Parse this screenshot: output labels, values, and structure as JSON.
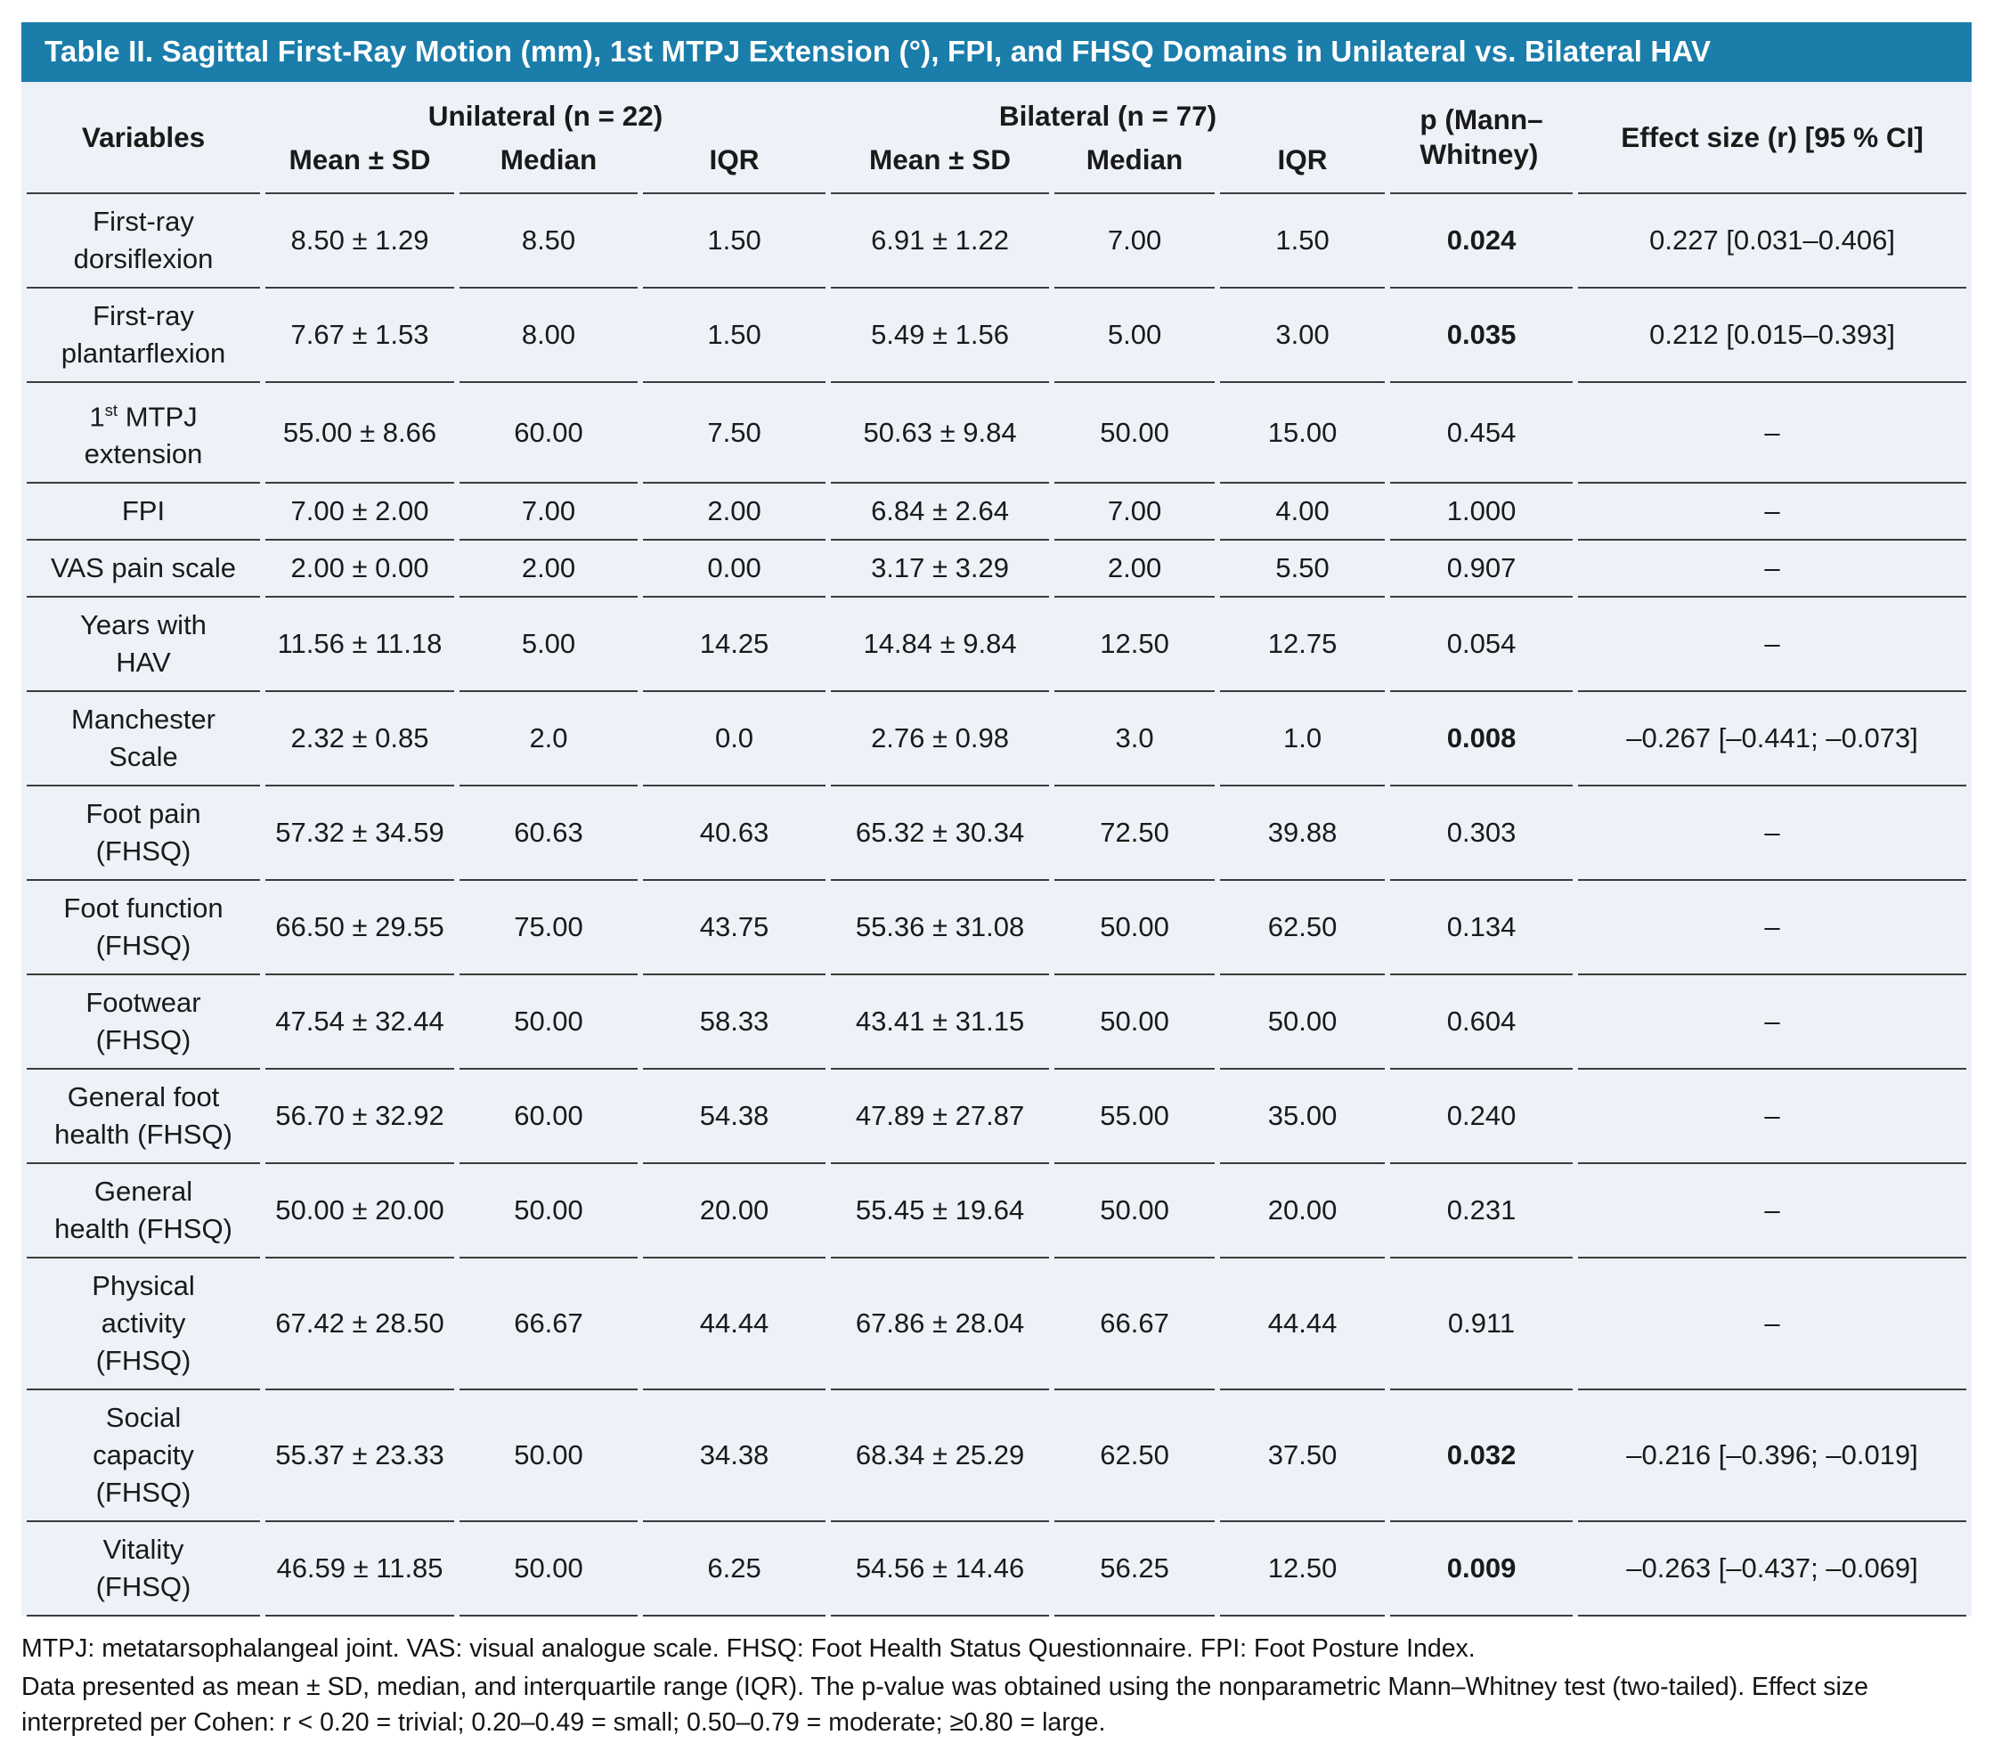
{
  "table": {
    "title": "Table II. Sagittal First-Ray Motion (mm), 1st MTPJ Extension (°), FPI, and FHSQ Domains in Unilateral vs. Bilateral HAV",
    "header": {
      "variables": "Variables",
      "group_unilateral": "Unilateral (n = 22)",
      "group_bilateral": "Bilateral (n = 77)",
      "sub": [
        "Mean ± SD",
        "Median",
        "IQR",
        "Mean ± SD",
        "Median",
        "IQR"
      ],
      "p": "p (Mann–\nWhitney)",
      "effect": "Effect size (r) [95 % CI]"
    },
    "rows": [
      {
        "label": "First-ray\ndorsiflexion",
        "u_mean": "8.50 ± 1.29",
        "u_median": "8.50",
        "u_iqr": "1.50",
        "b_mean": "6.91 ± 1.22",
        "b_median": "7.00",
        "b_iqr": "1.50",
        "p": "0.024",
        "p_bold": true,
        "effect": "0.227 [0.031–0.406]"
      },
      {
        "label": "First-ray\nplantarflexion",
        "u_mean": "7.67 ± 1.53",
        "u_median": "8.00",
        "u_iqr": "1.50",
        "b_mean": "5.49 ± 1.56",
        "b_median": "5.00",
        "b_iqr": "3.00",
        "p": "0.035",
        "p_bold": true,
        "effect": "0.212 [0.015–0.393]"
      },
      {
        "label_parts": [
          {
            "t": "1"
          },
          {
            "t": "st",
            "sup": true
          },
          {
            "t": " MTPJ\nextension"
          }
        ],
        "u_mean": "55.00 ± 8.66",
        "u_median": "60.00",
        "u_iqr": "7.50",
        "b_mean": "50.63 ± 9.84",
        "b_median": "50.00",
        "b_iqr": "15.00",
        "p": "0.454",
        "effect": "–"
      },
      {
        "label": "FPI",
        "u_mean": "7.00 ± 2.00",
        "u_median": "7.00",
        "u_iqr": "2.00",
        "b_mean": "6.84 ± 2.64",
        "b_median": "7.00",
        "b_iqr": "4.00",
        "p": "1.000",
        "effect": "–"
      },
      {
        "label": "VAS pain scale",
        "u_mean": "2.00 ± 0.00",
        "u_median": "2.00",
        "u_iqr": "0.00",
        "b_mean": "3.17 ± 3.29",
        "b_median": "2.00",
        "b_iqr": "5.50",
        "p": "0.907",
        "effect": "–"
      },
      {
        "label": "Years with\nHAV",
        "u_mean": "11.56 ± 11.18",
        "u_median": "5.00",
        "u_iqr": "14.25",
        "b_mean": "14.84 ± 9.84",
        "b_median": "12.50",
        "b_iqr": "12.75",
        "p": "0.054",
        "effect": "–"
      },
      {
        "label": "Manchester\nScale",
        "u_mean": "2.32 ± 0.85",
        "u_median": "2.0",
        "u_iqr": "0.0",
        "b_mean": "2.76 ± 0.98",
        "b_median": "3.0",
        "b_iqr": "1.0",
        "p": "0.008",
        "p_bold": true,
        "effect": "–0.267 [–0.441; –0.073]"
      },
      {
        "label": "Foot pain\n(FHSQ)",
        "u_mean": "57.32 ± 34.59",
        "u_median": "60.63",
        "u_iqr": "40.63",
        "b_mean": "65.32 ± 30.34",
        "b_median": "72.50",
        "b_iqr": "39.88",
        "p": "0.303",
        "effect": "–"
      },
      {
        "label": "Foot function\n(FHSQ)",
        "u_mean": "66.50 ± 29.55",
        "u_median": "75.00",
        "u_iqr": "43.75",
        "b_mean": "55.36 ± 31.08",
        "b_median": "50.00",
        "b_iqr": "62.50",
        "p": "0.134",
        "effect": "–"
      },
      {
        "label": "Footwear\n(FHSQ)",
        "u_mean": "47.54 ± 32.44",
        "u_median": "50.00",
        "u_iqr": "58.33",
        "b_mean": "43.41 ± 31.15",
        "b_median": "50.00",
        "b_iqr": "50.00",
        "p": "0.604",
        "effect": "–"
      },
      {
        "label": "General foot\nhealth (FHSQ)",
        "u_mean": "56.70 ± 32.92",
        "u_median": "60.00",
        "u_iqr": "54.38",
        "b_mean": "47.89 ± 27.87",
        "b_median": "55.00",
        "b_iqr": "35.00",
        "p": "0.240",
        "effect": "–"
      },
      {
        "label": "General\nhealth (FHSQ)",
        "u_mean": "50.00 ± 20.00",
        "u_median": "50.00",
        "u_iqr": "20.00",
        "b_mean": "55.45 ± 19.64",
        "b_median": "50.00",
        "b_iqr": "20.00",
        "p": "0.231",
        "effect": "–"
      },
      {
        "label": "Physical\nactivity\n(FHSQ)",
        "u_mean": "67.42 ± 28.50",
        "u_median": "66.67",
        "u_iqr": "44.44",
        "b_mean": "67.86 ± 28.04",
        "b_median": "66.67",
        "b_iqr": "44.44",
        "p": "0.911",
        "effect": "–"
      },
      {
        "label": "Social\ncapacity\n(FHSQ)",
        "u_mean": "55.37 ± 23.33",
        "u_median": "50.00",
        "u_iqr": "34.38",
        "b_mean": "68.34 ± 25.29",
        "b_median": "62.50",
        "b_iqr": "37.50",
        "p": "0.032",
        "p_bold": true,
        "effect": "–0.216 [–0.396; –0.019]"
      },
      {
        "label": "Vitality\n(FHSQ)",
        "u_mean": "46.59 ± 11.85",
        "u_median": "50.00",
        "u_iqr": "6.25",
        "b_mean": "54.56 ± 14.46",
        "b_median": "56.25",
        "b_iqr": "12.50",
        "p": "0.009",
        "p_bold": true,
        "effect": "–0.263 [–0.437; –0.069]"
      }
    ],
    "notes": [
      "MTPJ: metatarsophalangeal joint. VAS: visual analogue scale. FHSQ: Foot Health Status Questionnaire. FPI: Foot Posture Index.",
      "Data presented as mean ± SD, median, and interquartile range (IQR). The p-value was obtained using the nonparametric Mann–Whitney test (two-tailed). Effect size interpreted per Cohen: r < 0.20 = trivial; 0.20–0.49 = small; 0.50–0.79 = moderate; ≥0.80 = large."
    ],
    "colors": {
      "title_bar": "#1a7daa",
      "body_bg": "#edf1f8",
      "rule": "#3c3c3c",
      "title_text": "#ffffff"
    }
  }
}
